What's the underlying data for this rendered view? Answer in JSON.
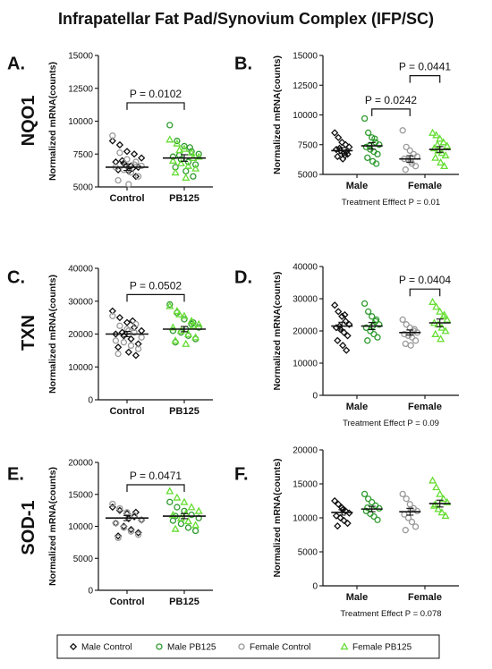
{
  "figure_title": "Infrapatellar Fat Pad/Synovium Complex (IFP/SC)",
  "colors": {
    "axis": "#111111",
    "male_control": "#111111",
    "male_pb125": "#2f9a2f",
    "female_control": "#9a9a9a",
    "female_pb125": "#66dd33"
  },
  "legend": {
    "items": [
      {
        "label": "Male Control",
        "marker": "diamond",
        "color": "#111111"
      },
      {
        "label": "Male PB125",
        "marker": "circle",
        "color": "#2f9a2f"
      },
      {
        "label": "Female Control",
        "marker": "circle",
        "color": "#9a9a9a"
      },
      {
        "label": "Female PB125",
        "marker": "triangle",
        "color": "#66dd33"
      }
    ]
  },
  "chart_data": [
    {
      "panel": "A.",
      "gene": "NQO1",
      "type": "scatter",
      "ylabel": "Normalized mRNA(counts)",
      "ylim": [
        5000,
        15000
      ],
      "yticks": [
        5000,
        7500,
        10000,
        12500,
        15000
      ],
      "yticklabels": [
        "5000",
        "7500",
        "10000",
        "12500",
        "15000"
      ],
      "categories": [
        "Control",
        "PB125"
      ],
      "groups": [
        {
          "series": "Male Control",
          "cat": 0,
          "marker": "diamond",
          "color": "#111111",
          "values": [
            8500,
            8200,
            7700,
            7500,
            7200,
            6900,
            6800,
            6600,
            6500,
            6300,
            6200,
            5800,
            7000,
            6400
          ]
        },
        {
          "series": "Female Control",
          "cat": 0,
          "marker": "circle",
          "color": "#9a9a9a",
          "values": [
            8900,
            7600,
            7100,
            6700,
            6600,
            6500,
            6300,
            6100,
            5800,
            5500,
            5200,
            6900
          ]
        },
        {
          "series": "Male PB125",
          "cat": 1,
          "marker": "circle",
          "color": "#2f9a2f",
          "values": [
            9700,
            8500,
            8100,
            7700,
            7500,
            7300,
            7100,
            6900,
            6700,
            6500,
            6200,
            5800,
            7400,
            8000
          ]
        },
        {
          "series": "Female PB125",
          "cat": 1,
          "marker": "triangle",
          "color": "#66dd33",
          "values": [
            8600,
            8300,
            7900,
            7600,
            7300,
            7000,
            6800,
            6600,
            6400,
            6100,
            5700,
            7200,
            7800
          ]
        }
      ],
      "means": [
        6500,
        7200
      ],
      "sems": [
        250,
        250
      ],
      "comparisons": [
        {
          "from": 0,
          "to": 1,
          "y": 11400,
          "label": "P = 0.0102"
        }
      ],
      "note": ""
    },
    {
      "panel": "B.",
      "gene": "",
      "type": "scatter",
      "ylabel": "Normalized mRNA(counts)",
      "ylim": [
        5000,
        15000
      ],
      "yticks": [
        5000,
        7500,
        10000,
        12500,
        15000
      ],
      "yticklabels": [
        "5000",
        "7500",
        "10000",
        "12500",
        "15000"
      ],
      "categories": [
        "Male",
        "Female"
      ],
      "groups": [
        {
          "series": "Male Control",
          "cat": 0,
          "pos": 0,
          "marker": "diamond",
          "color": "#111111",
          "values": [
            8500,
            8100,
            7700,
            7500,
            7300,
            7100,
            7000,
            6800,
            6700,
            6500,
            6300,
            6900,
            7200,
            6600
          ]
        },
        {
          "series": "Male PB125",
          "cat": 0,
          "pos": 1,
          "marker": "circle",
          "color": "#2f9a2f",
          "values": [
            9700,
            8500,
            8100,
            7700,
            7500,
            7300,
            7100,
            6900,
            6700,
            6400,
            6100,
            5900,
            7400,
            8000
          ]
        },
        {
          "series": "Female Control",
          "cat": 1,
          "pos": 0,
          "marker": "circle",
          "color": "#9a9a9a",
          "values": [
            8700,
            7300,
            7000,
            6700,
            6500,
            6300,
            6200,
            5900,
            5700,
            5400,
            6100
          ]
        },
        {
          "series": "Female PB125",
          "cat": 1,
          "pos": 1,
          "marker": "triangle",
          "color": "#66dd33",
          "values": [
            8500,
            8300,
            8000,
            7700,
            7400,
            7200,
            7000,
            6800,
            6600,
            6400,
            6000,
            5700,
            7500
          ]
        }
      ],
      "means": [
        [
          7000,
          7400
        ],
        [
          6300,
          7100
        ]
      ],
      "sems": [
        [
          250,
          280
        ],
        [
          270,
          240
        ]
      ],
      "comparisons": [
        {
          "from": [
            0,
            1
          ],
          "to": [
            1,
            0
          ],
          "y": 10500,
          "label": "P = 0.0242"
        },
        {
          "from": [
            1,
            0
          ],
          "to": [
            1,
            1
          ],
          "y": 13300,
          "label": "P = 0.0441"
        }
      ],
      "note": "Treatment Efffect P = 0.01"
    },
    {
      "panel": "C.",
      "gene": "TXN",
      "type": "scatter",
      "ylabel": "Normalized mRNA(counts)",
      "ylim": [
        0,
        40000
      ],
      "yticks": [
        0,
        10000,
        20000,
        30000,
        40000
      ],
      "yticklabels": [
        "0",
        "10000",
        "20000",
        "30000",
        "40000"
      ],
      "categories": [
        "Control",
        "PB125"
      ],
      "groups": [
        {
          "series": "Male Control",
          "cat": 0,
          "marker": "diamond",
          "color": "#111111",
          "values": [
            27000,
            25000,
            23500,
            22000,
            21000,
            20000,
            19500,
            18500,
            17000,
            16000,
            14500,
            13500,
            20500,
            24000
          ]
        },
        {
          "series": "Female Control",
          "cat": 0,
          "marker": "circle",
          "color": "#9a9a9a",
          "values": [
            25500,
            22500,
            21500,
            20500,
            19000,
            18000,
            17500,
            16500,
            15500,
            14000,
            21000,
            23000
          ]
        },
        {
          "series": "Male PB125",
          "cat": 1,
          "marker": "circle",
          "color": "#2f9a2f",
          "values": [
            29000,
            26500,
            24500,
            23000,
            22000,
            21000,
            20500,
            19500,
            18500,
            17500,
            21500,
            23500
          ]
        },
        {
          "series": "Female PB125",
          "cat": 1,
          "marker": "triangle",
          "color": "#66dd33",
          "values": [
            28500,
            27000,
            25500,
            24000,
            23000,
            22000,
            21000,
            20000,
            19000,
            18000,
            17000,
            22500,
            26000
          ]
        }
      ],
      "means": [
        20000,
        21500
      ],
      "sems": [
        800,
        800
      ],
      "comparisons": [
        {
          "from": 0,
          "to": 1,
          "y": 32000,
          "label": "P = 0.0502"
        }
      ],
      "note": ""
    },
    {
      "panel": "D.",
      "gene": "",
      "type": "scatter",
      "ylabel": "Normalized mRNA(counts)",
      "ylim": [
        0,
        40000
      ],
      "yticks": [
        0,
        10000,
        20000,
        30000,
        40000
      ],
      "yticklabels": [
        "0",
        "10000",
        "20000",
        "30000",
        "40000"
      ],
      "categories": [
        "Male",
        "Female"
      ],
      "groups": [
        {
          "series": "Male Control",
          "cat": 0,
          "pos": 0,
          "marker": "diamond",
          "color": "#111111",
          "values": [
            28000,
            26000,
            24500,
            23000,
            22000,
            21000,
            20500,
            19500,
            18500,
            17000,
            15500,
            14000,
            21500,
            25000
          ]
        },
        {
          "series": "Male PB125",
          "cat": 0,
          "pos": 1,
          "marker": "circle",
          "color": "#2f9a2f",
          "values": [
            28500,
            26000,
            24500,
            23000,
            22000,
            21000,
            20000,
            19000,
            18000,
            17000,
            21500,
            23500
          ]
        },
        {
          "series": "Female Control",
          "cat": 1,
          "pos": 0,
          "marker": "circle",
          "color": "#9a9a9a",
          "values": [
            23500,
            22000,
            21000,
            20000,
            19500,
            19000,
            18500,
            18000,
            17000,
            16000,
            15500,
            20500
          ]
        },
        {
          "series": "Female PB125",
          "cat": 1,
          "pos": 1,
          "marker": "triangle",
          "color": "#66dd33",
          "values": [
            29000,
            27500,
            26000,
            24500,
            23500,
            22500,
            22000,
            21000,
            20000,
            19000,
            17500,
            25000
          ]
        }
      ],
      "means": [
        [
          21500,
          21500
        ],
        [
          19500,
          22500
        ]
      ],
      "sems": [
        [
          1200,
          1100
        ],
        [
          800,
          1200
        ]
      ],
      "comparisons": [
        {
          "from": [
            1,
            0
          ],
          "to": [
            1,
            1
          ],
          "y": 33000,
          "label": "P = 0.0404"
        }
      ],
      "note": "Treatment Effect P = 0.09"
    },
    {
      "panel": "E.",
      "gene": "SOD-1",
      "type": "scatter",
      "ylabel": "Normalized mRNA(counts)",
      "ylim": [
        0,
        20000
      ],
      "yticks": [
        0,
        5000,
        10000,
        15000,
        20000
      ],
      "yticklabels": [
        "0",
        "5000",
        "10000",
        "15000",
        "20000"
      ],
      "categories": [
        "Control",
        "PB125"
      ],
      "groups": [
        {
          "series": "Male Control",
          "cat": 0,
          "marker": "diamond",
          "color": "#111111",
          "values": [
            13000,
            12500,
            12000,
            11500,
            11000,
            10500,
            10000,
            9500,
            9000,
            8500,
            11200,
            12200
          ]
        },
        {
          "series": "Female Control",
          "cat": 0,
          "marker": "circle",
          "color": "#9a9a9a",
          "values": [
            13500,
            12800,
            12200,
            11700,
            11000,
            10500,
            9800,
            9200,
            8700,
            8200,
            11400
          ]
        },
        {
          "series": "Male PB125",
          "cat": 1,
          "marker": "circle",
          "color": "#2f9a2f",
          "values": [
            13800,
            13000,
            12400,
            11800,
            11300,
            10900,
            10400,
            9800,
            9300,
            11600
          ]
        },
        {
          "series": "Female PB125",
          "cat": 1,
          "marker": "triangle",
          "color": "#66dd33",
          "values": [
            15500,
            14500,
            13800,
            13000,
            12400,
            11800,
            11300,
            10800,
            10200,
            9600,
            12000
          ]
        }
      ],
      "means": [
        11300,
        11600
      ],
      "sems": [
        400,
        400
      ],
      "comparisons": [
        {
          "from": 0,
          "to": 1,
          "y": 16500,
          "label": "P = 0.0471"
        }
      ],
      "note": ""
    },
    {
      "panel": "F.",
      "gene": "",
      "type": "scatter",
      "ylabel": "Normalized mRNA(counts)",
      "ylim": [
        0,
        20000
      ],
      "yticks": [
        0,
        5000,
        10000,
        15000,
        20000
      ],
      "yticklabels": [
        "0",
        "5000",
        "10000",
        "15000",
        "20000"
      ],
      "categories": [
        "Male",
        "Female"
      ],
      "groups": [
        {
          "series": "Male Control",
          "cat": 0,
          "pos": 0,
          "marker": "diamond",
          "color": "#111111",
          "values": [
            12500,
            12000,
            11500,
            11000,
            10700,
            10300,
            10000,
            9600,
            9200,
            8800,
            11200
          ]
        },
        {
          "series": "Male PB125",
          "cat": 0,
          "pos": 1,
          "marker": "circle",
          "color": "#2f9a2f",
          "values": [
            13500,
            12800,
            12300,
            11800,
            11400,
            11000,
            10600,
            10200,
            9700,
            11500
          ]
        },
        {
          "series": "Female Control",
          "cat": 1,
          "pos": 0,
          "marker": "circle",
          "color": "#9a9a9a",
          "values": [
            13500,
            12800,
            12000,
            11400,
            11000,
            10500,
            10000,
            9400,
            8700,
            8200,
            11200
          ]
        },
        {
          "series": "Female PB125",
          "cat": 1,
          "pos": 1,
          "marker": "triangle",
          "color": "#66dd33",
          "values": [
            15500,
            14500,
            13500,
            12800,
            12300,
            11800,
            11300,
            10800,
            10300,
            12000
          ]
        }
      ],
      "means": [
        [
          10800,
          11300
        ],
        [
          10900,
          12100
        ]
      ],
      "sems": [
        [
          400,
          400
        ],
        [
          500,
          500
        ]
      ],
      "comparisons": [],
      "note": "Treatment Effect P = 0.078"
    }
  ]
}
